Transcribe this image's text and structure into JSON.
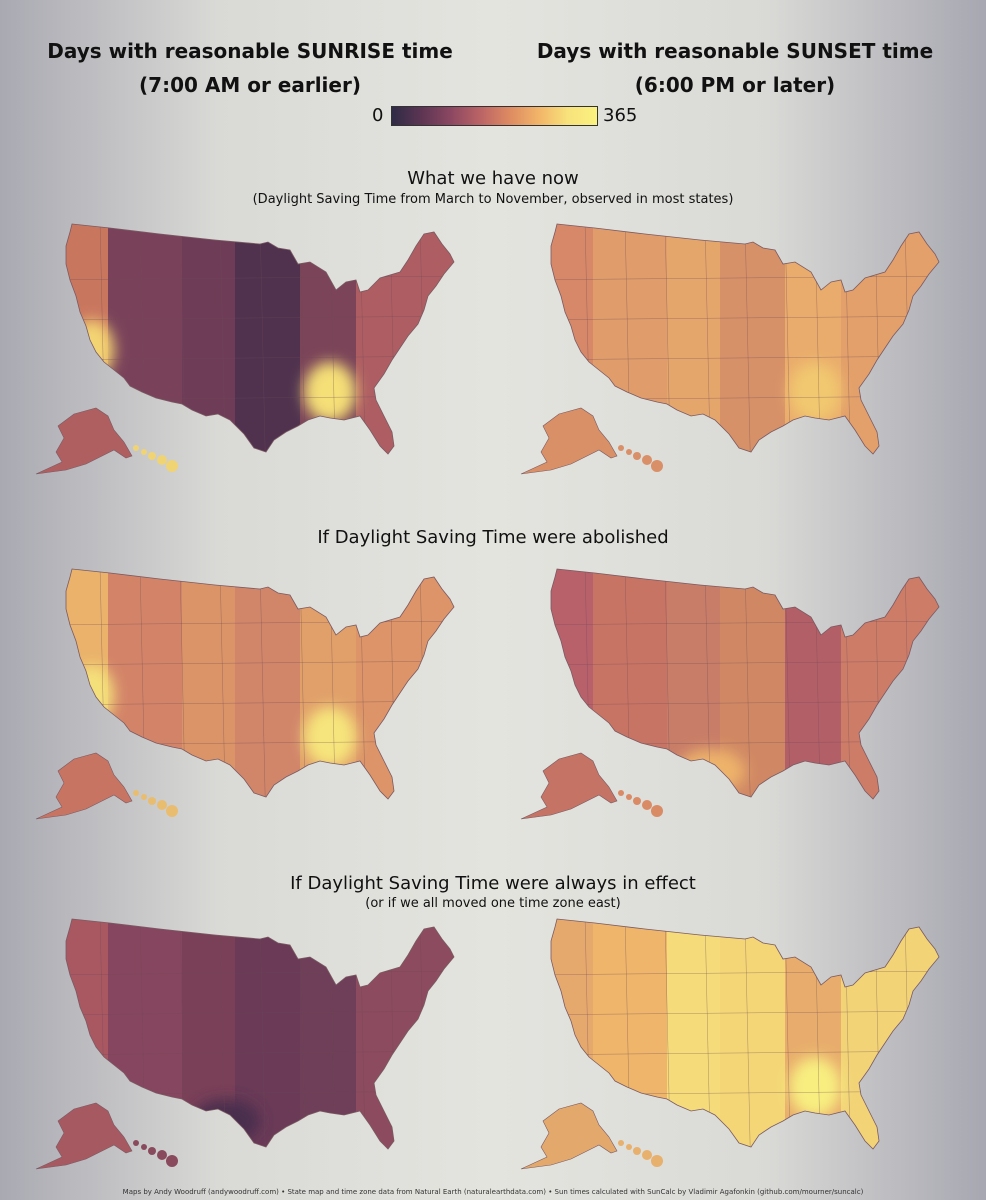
{
  "header": {
    "sunrise_title": "Days with reasonable SUNRISE time",
    "sunrise_sub": "(7:00 AM or earlier)",
    "sunset_title": "Days with reasonable SUNSET time",
    "sunset_sub": "(6:00 PM or later)"
  },
  "legend": {
    "min": "0",
    "max": "365",
    "colors": [
      "#2f2b46",
      "#5c3553",
      "#8b4761",
      "#ba6366",
      "#dd8a62",
      "#f2b468",
      "#f8e27c",
      "#fbf27f"
    ]
  },
  "sections": [
    {
      "title": "What we have now",
      "subtitle": "(Daylight Saving Time from March to November, observed in most states)",
      "sunrise": {
        "bands": [
          "#c9765f",
          "#7a425a",
          "#6f3c58",
          "#50324f",
          "#7b4459",
          "#ae5e62"
        ],
        "lightspots": [
          {
            "where": "california-south",
            "color": "#f3d472"
          },
          {
            "where": "southeast",
            "color": "#f5df77"
          }
        ],
        "alaska": "#b05f61",
        "hawaii": "#f0d373"
      },
      "sunset": {
        "bands": [
          "#d68868",
          "#e09c6a",
          "#e5a66c",
          "#d79168",
          "#eaac6c",
          "#e3a06a"
        ],
        "lightspots": [
          {
            "where": "southeast",
            "color": "#f1c86f"
          }
        ],
        "alaska": "#d99066",
        "hawaii": "#d98f67"
      }
    },
    {
      "title": "If Daylight Saving Time were abolished",
      "subtitle": "",
      "sunrise": {
        "bands": [
          "#eab26b",
          "#d38468",
          "#db9468",
          "#d1866a",
          "#e1a06a",
          "#dc9468"
        ],
        "lightspots": [
          {
            "where": "california-south",
            "color": "#f4e07a"
          },
          {
            "where": "southeast",
            "color": "#f6e57b"
          }
        ],
        "alaska": "#c87463",
        "hawaii": "#e9bd6f"
      },
      "sunset": {
        "bands": [
          "#b8616a",
          "#c87464",
          "#c87d68",
          "#d08864",
          "#b35f67",
          "#cd7c68"
        ],
        "lightspots": [
          {
            "where": "texas",
            "color": "#eeb36b"
          }
        ],
        "alaska": "#c47365",
        "hawaii": "#d98b66"
      }
    },
    {
      "title": "If Daylight Saving Time were always in effect",
      "subtitle": "(or if we all moved one time zone east)",
      "sunrise": {
        "bands": [
          "#a95862",
          "#86465f",
          "#7a4058",
          "#6a3a57",
          "#6f3e58",
          "#8c4b5f"
        ],
        "lightspots": [
          {
            "where": "texas",
            "color": "#4a2f4e"
          }
        ],
        "alaska": "#a75961",
        "hawaii": "#8a4a5e"
      },
      "sunset": {
        "bands": [
          "#e6a96d",
          "#eeb56b",
          "#f5db79",
          "#f4d676",
          "#e8ad6c",
          "#f2d477"
        ],
        "lightspots": [
          {
            "where": "southeast",
            "color": "#f8ee80"
          }
        ],
        "alaska": "#e3a86c",
        "hawaii": "#e7b06c"
      }
    }
  ],
  "credits": "Maps by Andy Woodruff (andywoodruff.com) • State map and time zone data from Natural Earth (naturalearthdata.com) • Sun times calculated with SunCalc by Vladimir Agafonkin (github.com/mourner/suncalc)"
}
